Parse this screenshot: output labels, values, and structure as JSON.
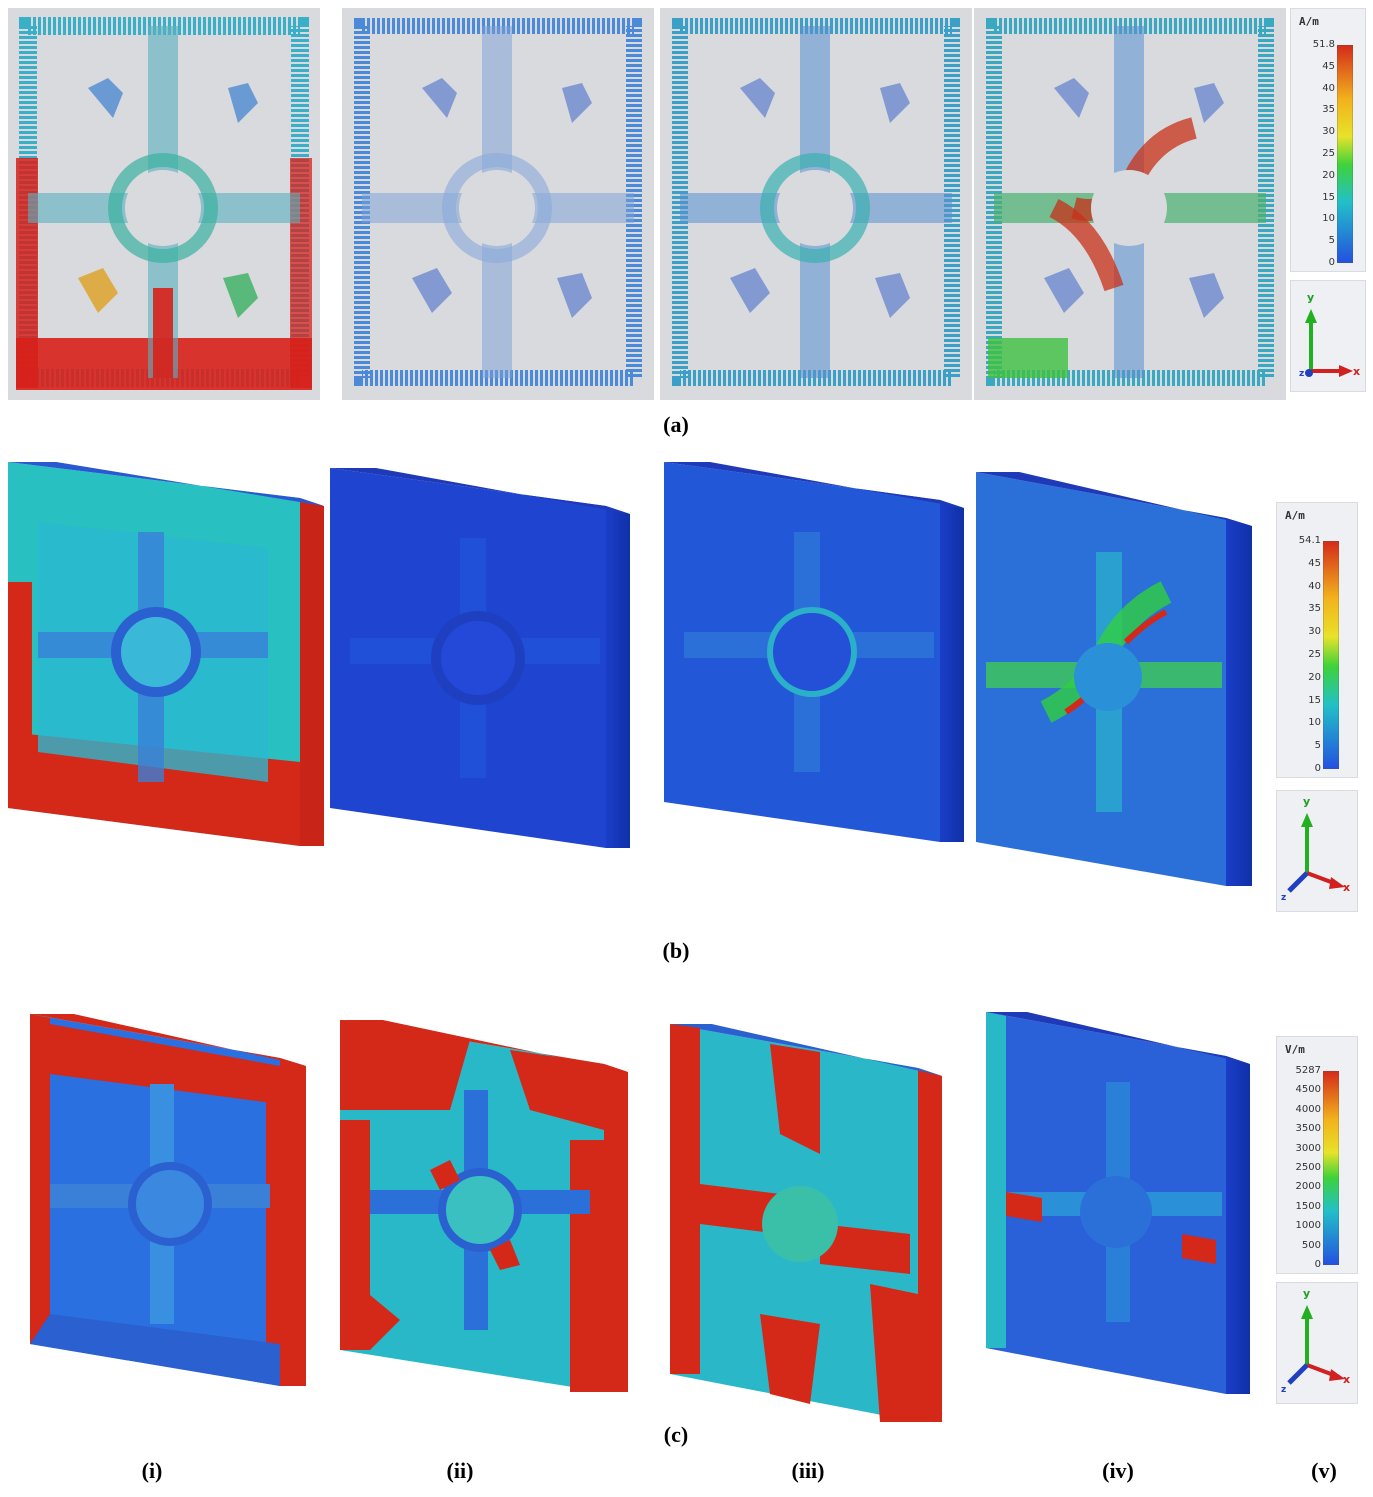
{
  "row_a": {
    "label": "(a)",
    "legend": {
      "unit": "A/m",
      "ticks": [
        "51.8",
        "45",
        "40",
        "35",
        "30",
        "25",
        "20",
        "15",
        "10",
        "5",
        "0"
      ]
    },
    "axes": {
      "y": "y",
      "x": "x",
      "z": "z"
    }
  },
  "row_b": {
    "label": "(b)",
    "legend": {
      "unit": "A/m",
      "ticks": [
        "54.1",
        "45",
        "40",
        "35",
        "30",
        "25",
        "20",
        "15",
        "10",
        "5",
        "0"
      ]
    },
    "axes": {
      "y": "y",
      "x": "x",
      "z": "z"
    }
  },
  "row_c": {
    "label": "(c)",
    "legend": {
      "unit": "V/m",
      "ticks": [
        "5287",
        "4500",
        "4000",
        "3500",
        "3000",
        "2500",
        "2000",
        "1500",
        "1000",
        "500",
        "0"
      ]
    },
    "axes": {
      "y": "y",
      "x": "x",
      "z": "z"
    }
  },
  "columns": [
    "(i)",
    "(ii)",
    "(iii)",
    "(iv)",
    "(v)"
  ],
  "colors": {
    "low": "#1f3fd0",
    "mid": "#22c0c8",
    "high": "#d41a10",
    "green": "#3fd23a",
    "yellow": "#e8e22a"
  }
}
